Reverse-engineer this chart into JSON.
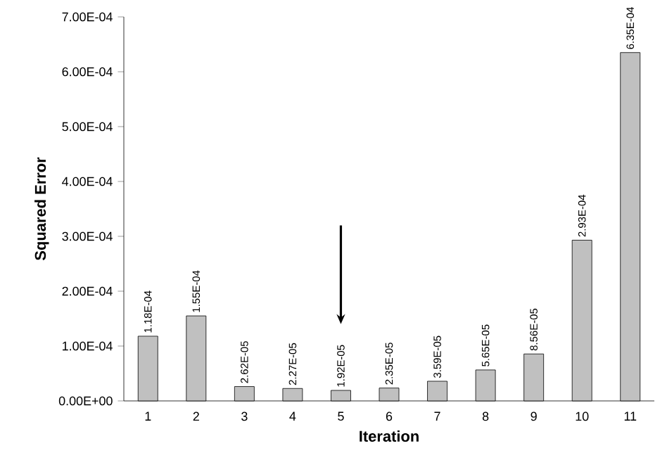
{
  "chart_data": {
    "type": "bar",
    "xlabel": "Iteration",
    "ylabel": "Squared  Error",
    "categories": [
      "1",
      "2",
      "3",
      "4",
      "5",
      "6",
      "7",
      "8",
      "9",
      "10",
      "11"
    ],
    "values": [
      0.000118,
      0.000155,
      2.62e-05,
      2.27e-05,
      1.92e-05,
      2.35e-05,
      3.59e-05,
      5.65e-05,
      8.56e-05,
      0.000293,
      0.000635
    ],
    "value_labels": [
      "1.18E-04",
      "1.55E-04",
      "2.62E-05",
      "2.27E-05",
      "1.92E-05",
      "2.35E-05",
      "3.59E-05",
      "5.65E-05",
      "8.56E-05",
      "2.93E-04",
      "6.35E-04"
    ],
    "color": "#c0c0c0",
    "ylim": [
      0,
      0.0007
    ],
    "yticks": [
      {
        "value": 0,
        "label": "0.00E+00"
      },
      {
        "value": 0.0001,
        "label": "1.00E-04"
      },
      {
        "value": 0.0002,
        "label": "2.00E-04"
      },
      {
        "value": 0.0003,
        "label": "3.00E-04"
      },
      {
        "value": 0.0004,
        "label": "4.00E-04"
      },
      {
        "value": 0.0005,
        "label": "5.00E-04"
      },
      {
        "value": 0.0006,
        "label": "6.00E-04"
      },
      {
        "value": 0.0007,
        "label": "7.00E-04"
      }
    ]
  }
}
